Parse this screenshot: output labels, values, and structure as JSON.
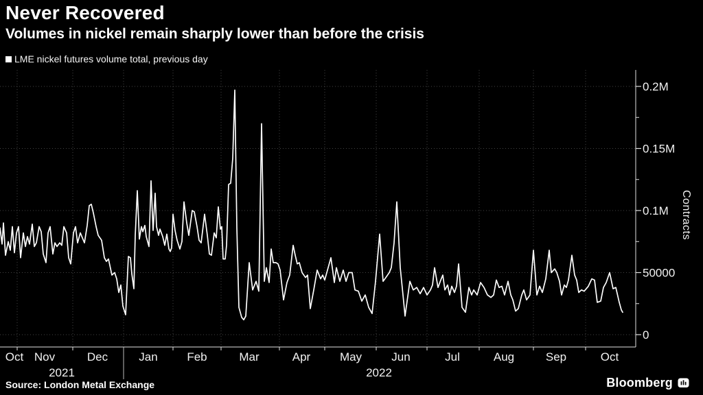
{
  "header": {
    "title": "Never Recovered",
    "subtitle": "Volumes in nickel remain sharply lower than before the crisis"
  },
  "legend": {
    "label": "LME nickel futures volume total, previous day",
    "marker_color": "#ffffff"
  },
  "source": {
    "label": "Source: London Metal Exchange"
  },
  "brand": {
    "label": "Bloomberg",
    "icon": "bloomberg-bars-icon"
  },
  "colors": {
    "background": "#000000",
    "line": "#ffffff",
    "grid": "#454545",
    "axis": "#e3e3e3",
    "tick_label": "#f2f2f2",
    "year_label": "#d9d9d9"
  },
  "chart_data": {
    "type": "line",
    "title": "Never Recovered",
    "series_name": "LME nickel futures volume total, previous day",
    "xlabel": "",
    "ylabel": "Contracts",
    "ylim": [
      0,
      213000
    ],
    "grid": "dotted",
    "legend_position": "top-left",
    "y_axis_side": "right",
    "y_ticks": [
      {
        "value": 200000,
        "label": "0.2M"
      },
      {
        "value": 150000,
        "label": "0.15M"
      },
      {
        "value": 100000,
        "label": "0.1M"
      },
      {
        "value": 50000,
        "label": "50000"
      },
      {
        "value": 0,
        "label": "0"
      }
    ],
    "y_minor_tick_values": [
      175000,
      125000,
      75000,
      25000
    ],
    "x_axis": {
      "domain_note": "t is a linear time coordinate, ~Oct 22 2021 (t=0) to ~Oct 23 2022 (t=907), axis span 0-926",
      "t_domain": [
        0,
        926
      ],
      "month_boundaries_t": [
        25,
        106,
        180,
        252,
        322,
        407,
        473,
        548,
        622,
        698,
        777,
        853
      ],
      "month_labels": [
        {
          "label": "Oct",
          "t": 21
        },
        {
          "label": "Nov",
          "t": 65
        },
        {
          "label": "Dec",
          "t": 142
        },
        {
          "label": "Jan",
          "t": 216
        },
        {
          "label": "Feb",
          "t": 287
        },
        {
          "label": "Mar",
          "t": 363
        },
        {
          "label": "Apr",
          "t": 439
        },
        {
          "label": "May",
          "t": 511
        },
        {
          "label": "Jun",
          "t": 584
        },
        {
          "label": "Jul",
          "t": 659
        },
        {
          "label": "Aug",
          "t": 734
        },
        {
          "label": "Sep",
          "t": 810
        },
        {
          "label": "Oct",
          "t": 888
        }
      ],
      "year_labels": [
        {
          "label": "2021",
          "t": 90
        },
        {
          "label": "2022",
          "t": 552
        }
      ],
      "year_separator_t": 180
    },
    "points": [
      [
        0,
        86000
      ],
      [
        3,
        73000
      ],
      [
        5,
        90000
      ],
      [
        8,
        64000
      ],
      [
        12,
        75000
      ],
      [
        15,
        68000
      ],
      [
        18,
        87000
      ],
      [
        21,
        66000
      ],
      [
        24,
        82000
      ],
      [
        27,
        87000
      ],
      [
        30,
        62000
      ],
      [
        34,
        82000
      ],
      [
        37,
        71000
      ],
      [
        40,
        79000
      ],
      [
        43,
        73000
      ],
      [
        47,
        89000
      ],
      [
        50,
        71000
      ],
      [
        53,
        74000
      ],
      [
        57,
        87000
      ],
      [
        60,
        83000
      ],
      [
        63,
        65000
      ],
      [
        67,
        58000
      ],
      [
        70,
        82000
      ],
      [
        73,
        87000
      ],
      [
        77,
        65000
      ],
      [
        80,
        74000
      ],
      [
        83,
        71000
      ],
      [
        87,
        74000
      ],
      [
        90,
        72000
      ],
      [
        93,
        87000
      ],
      [
        97,
        82000
      ],
      [
        100,
        62000
      ],
      [
        103,
        57000
      ],
      [
        107,
        82000
      ],
      [
        110,
        87000
      ],
      [
        113,
        74000
      ],
      [
        117,
        82000
      ],
      [
        120,
        78000
      ],
      [
        123,
        74000
      ],
      [
        127,
        88000
      ],
      [
        130,
        104000
      ],
      [
        133,
        105000
      ],
      [
        136,
        98000
      ],
      [
        140,
        87000
      ],
      [
        143,
        80000
      ],
      [
        148,
        76000
      ],
      [
        152,
        62000
      ],
      [
        155,
        59000
      ],
      [
        158,
        61000
      ],
      [
        163,
        48000
      ],
      [
        167,
        50000
      ],
      [
        170,
        45000
      ],
      [
        173,
        34000
      ],
      [
        176,
        40000
      ],
      [
        179,
        23000
      ],
      [
        183,
        16000
      ],
      [
        187,
        63000
      ],
      [
        190,
        62000
      ],
      [
        192,
        49000
      ],
      [
        195,
        37000
      ],
      [
        197,
        80000
      ],
      [
        200,
        116000
      ],
      [
        203,
        77000
      ],
      [
        206,
        87000
      ],
      [
        208,
        83000
      ],
      [
        211,
        88000
      ],
      [
        213,
        79000
      ],
      [
        217,
        71000
      ],
      [
        220,
        124000
      ],
      [
        223,
        84000
      ],
      [
        226,
        114000
      ],
      [
        228,
        87000
      ],
      [
        231,
        80000
      ],
      [
        233,
        85000
      ],
      [
        237,
        79000
      ],
      [
        240,
        72000
      ],
      [
        243,
        81000
      ],
      [
        246,
        69000
      ],
      [
        248,
        67000
      ],
      [
        250,
        70000
      ],
      [
        252,
        97000
      ],
      [
        255,
        84000
      ],
      [
        258,
        76000
      ],
      [
        262,
        69000
      ],
      [
        265,
        75000
      ],
      [
        268,
        107000
      ],
      [
        272,
        90000
      ],
      [
        275,
        80000
      ],
      [
        280,
        100000
      ],
      [
        283,
        99000
      ],
      [
        287,
        87000
      ],
      [
        290,
        76000
      ],
      [
        293,
        74000
      ],
      [
        298,
        97000
      ],
      [
        302,
        80000
      ],
      [
        305,
        65000
      ],
      [
        308,
        64000
      ],
      [
        312,
        82000
      ],
      [
        315,
        78000
      ],
      [
        318,
        103000
      ],
      [
        321,
        85000
      ],
      [
        323,
        87000
      ],
      [
        325,
        61000
      ],
      [
        328,
        61000
      ],
      [
        330,
        72000
      ],
      [
        333,
        121000
      ],
      [
        336,
        122000
      ],
      [
        339,
        142000
      ],
      [
        342,
        197000
      ],
      [
        345,
        86000
      ],
      [
        348,
        22000
      ],
      [
        352,
        14000
      ],
      [
        355,
        12000
      ],
      [
        358,
        15000
      ],
      [
        363,
        58000
      ],
      [
        368,
        36000
      ],
      [
        373,
        43000
      ],
      [
        377,
        35000
      ],
      [
        381,
        170000
      ],
      [
        385,
        43000
      ],
      [
        388,
        54000
      ],
      [
        392,
        42000
      ],
      [
        395,
        69000
      ],
      [
        398,
        58000
      ],
      [
        402,
        58000
      ],
      [
        405,
        57000
      ],
      [
        408,
        52000
      ],
      [
        413,
        28000
      ],
      [
        418,
        42000
      ],
      [
        422,
        48000
      ],
      [
        427,
        72000
      ],
      [
        430,
        64000
      ],
      [
        433,
        57000
      ],
      [
        436,
        58000
      ],
      [
        440,
        50000
      ],
      [
        445,
        46000
      ],
      [
        448,
        48000
      ],
      [
        452,
        21000
      ],
      [
        457,
        36000
      ],
      [
        462,
        52000
      ],
      [
        467,
        45000
      ],
      [
        470,
        48000
      ],
      [
        473,
        44000
      ],
      [
        478,
        54000
      ],
      [
        482,
        62000
      ],
      [
        487,
        42000
      ],
      [
        490,
        54000
      ],
      [
        495,
        43000
      ],
      [
        500,
        52000
      ],
      [
        504,
        43000
      ],
      [
        508,
        50000
      ],
      [
        513,
        50000
      ],
      [
        517,
        36000
      ],
      [
        522,
        35000
      ],
      [
        527,
        27000
      ],
      [
        532,
        32000
      ],
      [
        537,
        22000
      ],
      [
        542,
        17000
      ],
      [
        547,
        43000
      ],
      [
        553,
        81000
      ],
      [
        558,
        43000
      ],
      [
        562,
        46000
      ],
      [
        567,
        50000
      ],
      [
        570,
        54000
      ],
      [
        574,
        74000
      ],
      [
        578,
        107000
      ],
      [
        583,
        54000
      ],
      [
        587,
        32000
      ],
      [
        590,
        15000
      ],
      [
        597,
        43000
      ],
      [
        602,
        36000
      ],
      [
        607,
        38000
      ],
      [
        612,
        33000
      ],
      [
        617,
        38000
      ],
      [
        622,
        32000
      ],
      [
        627,
        36000
      ],
      [
        630,
        40000
      ],
      [
        633,
        54000
      ],
      [
        638,
        38000
      ],
      [
        642,
        44000
      ],
      [
        645,
        48000
      ],
      [
        648,
        36000
      ],
      [
        652,
        40000
      ],
      [
        655,
        32000
      ],
      [
        658,
        39000
      ],
      [
        662,
        34000
      ],
      [
        665,
        39000
      ],
      [
        668,
        57000
      ],
      [
        673,
        22000
      ],
      [
        678,
        18000
      ],
      [
        683,
        38000
      ],
      [
        687,
        32000
      ],
      [
        690,
        36000
      ],
      [
        695,
        32000
      ],
      [
        700,
        42000
      ],
      [
        705,
        38000
      ],
      [
        710,
        32000
      ],
      [
        715,
        30000
      ],
      [
        719,
        32000
      ],
      [
        723,
        44000
      ],
      [
        727,
        38000
      ],
      [
        731,
        39000
      ],
      [
        735,
        32000
      ],
      [
        740,
        43000
      ],
      [
        744,
        32000
      ],
      [
        747,
        28000
      ],
      [
        751,
        19000
      ],
      [
        755,
        21000
      ],
      [
        760,
        32000
      ],
      [
        763,
        36000
      ],
      [
        767,
        28000
      ],
      [
        772,
        32000
      ],
      [
        777,
        68000
      ],
      [
        782,
        32000
      ],
      [
        786,
        39000
      ],
      [
        790,
        34000
      ],
      [
        795,
        45000
      ],
      [
        800,
        68000
      ],
      [
        803,
        50000
      ],
      [
        808,
        53000
      ],
      [
        811,
        50000
      ],
      [
        815,
        43000
      ],
      [
        818,
        32000
      ],
      [
        822,
        40000
      ],
      [
        825,
        38000
      ],
      [
        828,
        44000
      ],
      [
        833,
        64000
      ],
      [
        837,
        48000
      ],
      [
        840,
        44000
      ],
      [
        843,
        34000
      ],
      [
        847,
        36000
      ],
      [
        851,
        35000
      ],
      [
        857,
        39000
      ],
      [
        862,
        45000
      ],
      [
        866,
        44000
      ],
      [
        870,
        26000
      ],
      [
        875,
        27000
      ],
      [
        879,
        38000
      ],
      [
        883,
        42000
      ],
      [
        888,
        50000
      ],
      [
        893,
        37000
      ],
      [
        897,
        38000
      ],
      [
        902,
        26000
      ],
      [
        905,
        20000
      ],
      [
        907,
        18000
      ]
    ]
  }
}
